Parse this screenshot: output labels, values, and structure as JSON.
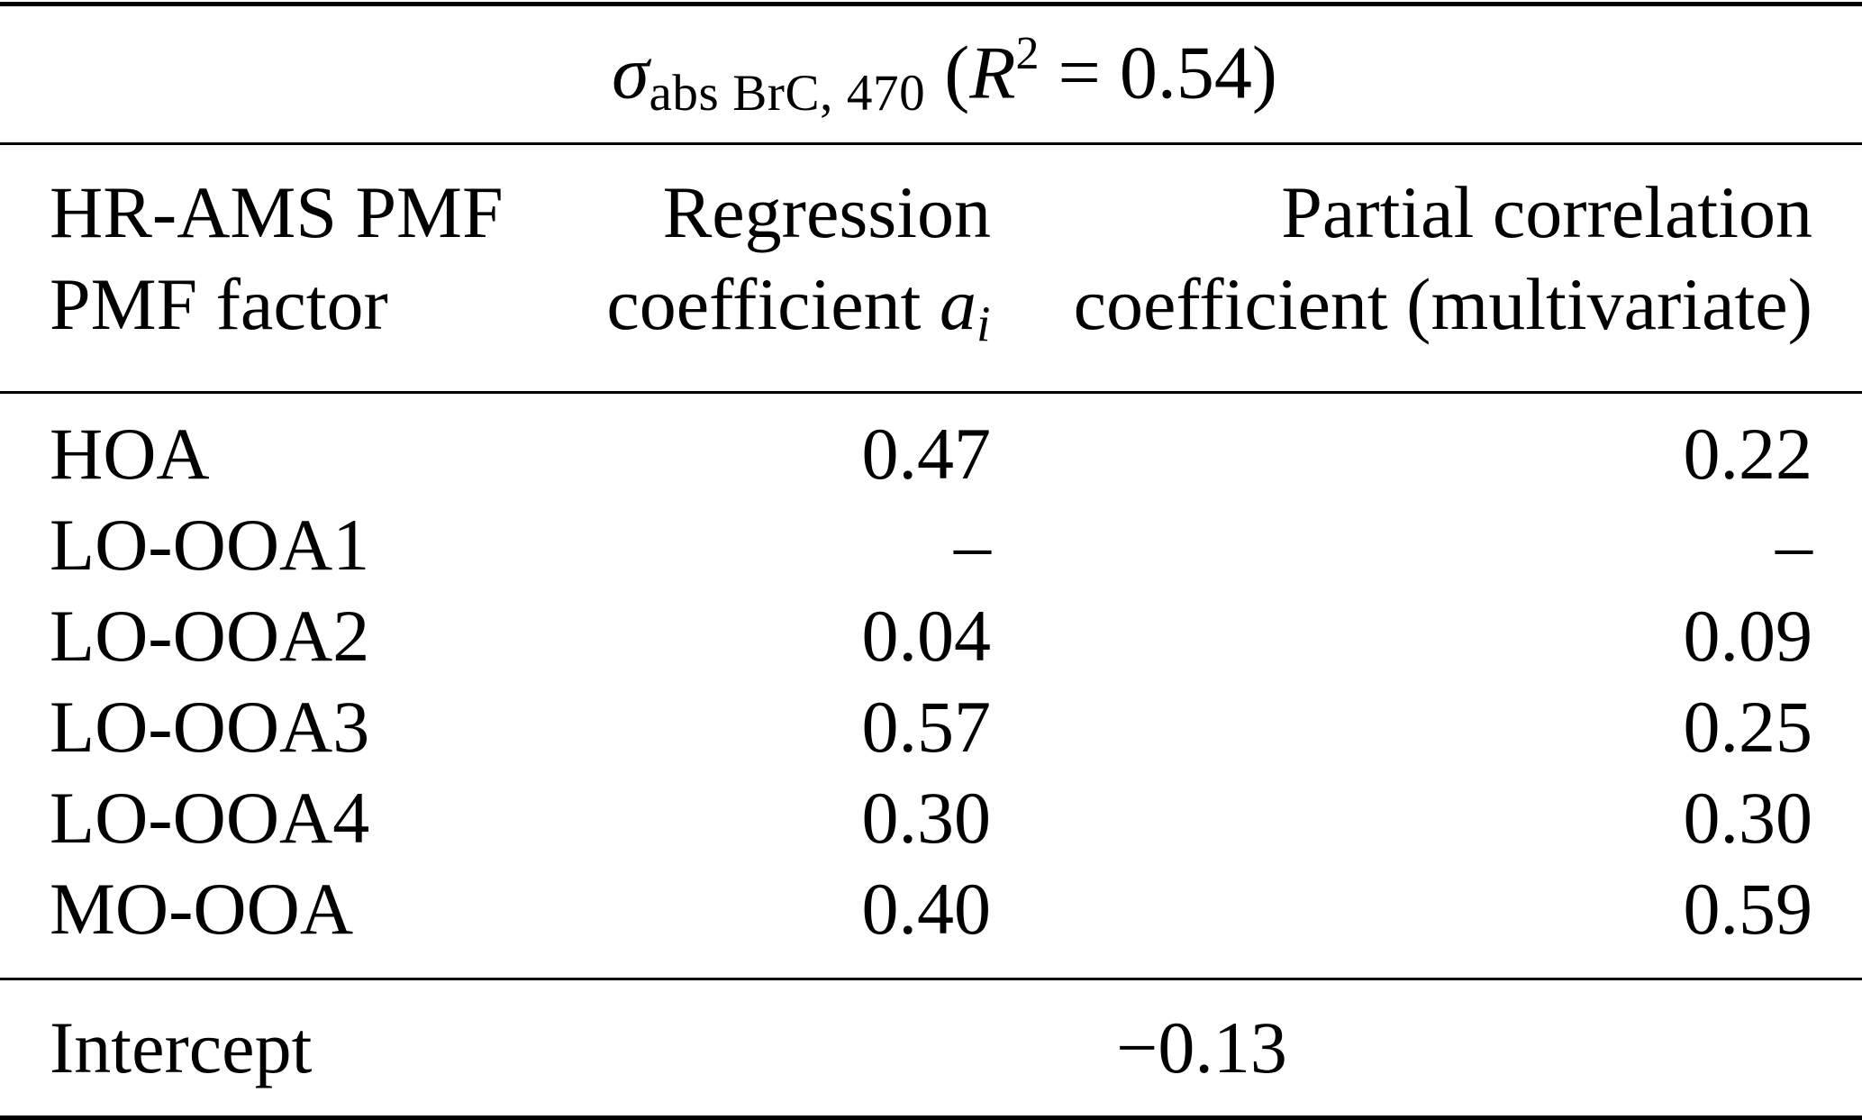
{
  "page": {
    "background_color": "#ffffff",
    "text_color": "#000000"
  },
  "title": {
    "symbol": "σ",
    "symbol_subscript": "abs BrC, 470",
    "paren_open": " (",
    "r_symbol": "R",
    "r_exponent": "2",
    "r_tail": " = 0.54)"
  },
  "header": {
    "col1": {
      "line1": "HR-AMS PMF",
      "line2": "PMF factor"
    },
    "col2": {
      "line1": "Regression",
      "line2_text": "coefficient",
      "var": "a",
      "var_sub": "i"
    },
    "col3": {
      "line1": "Partial correlation",
      "line2": "coefficient (multivariate)"
    }
  },
  "rows": [
    {
      "factor": "HOA",
      "regression": "0.47",
      "partial": "0.22"
    },
    {
      "factor": "LO-OOA1",
      "regression": "–",
      "partial": "–"
    },
    {
      "factor": "LO-OOA2",
      "regression": "0.04",
      "partial": "0.09"
    },
    {
      "factor": "LO-OOA3",
      "regression": "0.57",
      "partial": "0.25"
    },
    {
      "factor": "LO-OOA4",
      "regression": "0.30",
      "partial": "0.30"
    },
    {
      "factor": "MO-OOA",
      "regression": "0.40",
      "partial": "0.59"
    }
  ],
  "footer": {
    "label": "Intercept",
    "value": "−0.13"
  },
  "chart_data": {
    "type": "table",
    "title": "σ_abs BrC, 470 (R^2 = 0.54)",
    "columns": [
      "HR-AMS PMF PMF factor",
      "Regression coefficient a_i",
      "Partial correlation coefficient (multivariate)"
    ],
    "rows": [
      [
        "HOA",
        "0.47",
        "0.22"
      ],
      [
        "LO-OOA1",
        "–",
        "–"
      ],
      [
        "LO-OOA2",
        "0.04",
        "0.09"
      ],
      [
        "LO-OOA3",
        "0.57",
        "0.25"
      ],
      [
        "LO-OOA4",
        "0.30",
        "0.30"
      ],
      [
        "MO-OOA",
        "0.40",
        "0.59"
      ],
      [
        "Intercept",
        "−0.13",
        ""
      ]
    ]
  }
}
